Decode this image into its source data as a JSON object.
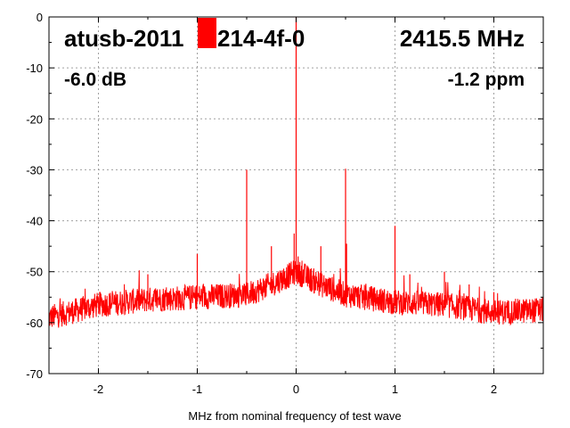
{
  "chart_data": {
    "type": "line",
    "title": "atusb-20111214-4f-0",
    "annotations": {
      "device": "atusb-2011",
      "device_rest": "214-4f-0",
      "frequency": "2415.5 MHz",
      "attenuation": "-6.0 dB",
      "offset": "-1.2 ppm"
    },
    "xlabel": "MHz from nominal frequency of test wave",
    "ylabel": "",
    "xlim": [
      -2.5,
      2.5
    ],
    "ylim": [
      -70,
      0
    ],
    "xticks": [
      -2,
      -1,
      0,
      1,
      2
    ],
    "xtick_labels": [
      "-2",
      "-1",
      "0",
      "1",
      "2"
    ],
    "yticks": [
      0,
      -10,
      -20,
      -30,
      -40,
      -50,
      -60,
      -70
    ],
    "ytick_labels": [
      "0",
      "-10",
      "-20",
      "-30",
      "-40",
      "-50",
      "-60",
      "-70"
    ],
    "grid": true,
    "series_color": "#ff0000",
    "noise_floor": {
      "x": [
        -2.5,
        -2.0,
        -1.5,
        -1.0,
        -0.5,
        -0.25,
        0,
        0.25,
        0.5,
        1.0,
        1.5,
        2.0,
        2.5
      ],
      "y": [
        -59,
        -56.5,
        -55.5,
        -55,
        -54.5,
        -52.5,
        -50,
        -52.5,
        -54.5,
        -56,
        -56.5,
        -58,
        -57.5
      ]
    },
    "spurs": {
      "x": [
        -1.5,
        -1.0,
        -0.5,
        -0.25,
        -0.02,
        0,
        0.02,
        0.25,
        0.5,
        0.51,
        1.0,
        1.15,
        1.5,
        1.75,
        2.0
      ],
      "y": [
        -50.5,
        -46.5,
        -30,
        -45,
        -42.5,
        0,
        -47,
        -45,
        -29.8,
        -44.5,
        -41,
        -50.5,
        -50,
        -52.5,
        -54
      ]
    }
  }
}
